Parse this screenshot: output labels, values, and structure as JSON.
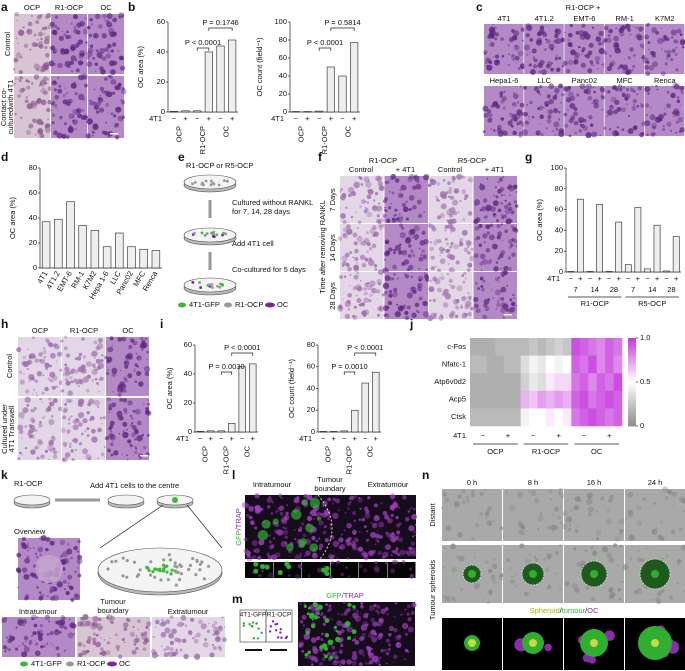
{
  "panels": {
    "a": {
      "letter": "a",
      "columns": [
        "OCP",
        "R1-OCP",
        "OC"
      ],
      "rows": [
        [
          "Control"
        ],
        [
          "Contact co-",
          "culturedwith 4T1"
        ]
      ]
    },
    "b": {
      "letter": "b"
    },
    "c": {
      "letter": "c",
      "title": "R1-OCP +",
      "cells": [
        "4T1",
        "4T1.2",
        "EMT-6",
        "RM-1",
        "K7M2",
        "Hepa1-6",
        "LLC",
        "Panc02",
        "MFC",
        "Renca"
      ]
    },
    "d": {
      "letter": "d"
    },
    "e": {
      "letter": "e",
      "title": "R1-OCP or R5-OCP",
      "steps": [
        [
          "Cultured without RANKL",
          "for 7, 14, 28 days"
        ],
        [
          "Add 4T1 cell"
        ],
        [
          "Co-cultured for 5 days"
        ]
      ],
      "legend": [
        "4T1-GFP",
        "R1-OCP",
        "OC"
      ]
    },
    "f": {
      "letter": "f",
      "groups": [
        "R1-OCP",
        "R5-OCP"
      ],
      "columns": [
        "Control",
        "+ 4T1",
        "Control",
        "+ 4T1"
      ],
      "side": "Time after removing RANKL",
      "rows": [
        "7 Days",
        "14 Days",
        "28 Days"
      ]
    },
    "g": {
      "letter": "g"
    },
    "h": {
      "letter": "h",
      "columns": [
        "OCP",
        "R1-OCP",
        "OC"
      ],
      "rows": [
        [
          "Control"
        ],
        [
          "Cultured under",
          "4T1 Transwell"
        ]
      ]
    },
    "i": {
      "letter": "i"
    },
    "j": {
      "letter": "j"
    },
    "k": {
      "letter": "k",
      "title": "R1-OCP",
      "step": "Add 4T1 cells to the centre",
      "overview": "Overview",
      "regions": [
        [
          "Intratumour"
        ],
        [
          "Tumour",
          "boundary"
        ],
        [
          "Extratumour"
        ]
      ],
      "legend": [
        "4T1-GFP",
        "R1-OCP",
        "OC"
      ]
    },
    "l": {
      "letter": "l",
      "regions": [
        [
          "Intratumour"
        ],
        [
          "Tumour",
          "boundary"
        ],
        [
          "Extratumour"
        ]
      ],
      "stain": [
        "GFP",
        "/TRAP"
      ]
    },
    "m": {
      "letter": "m",
      "inset": [
        "4T1-GFP",
        "R1-OCP"
      ],
      "stain": [
        "GFP",
        "/TRAP"
      ]
    },
    "n": {
      "letter": "n",
      "times": [
        "0 h",
        "8 h",
        "16 h",
        "24 h"
      ],
      "rows": [
        "Distant",
        "Tumour spheroids"
      ],
      "legend": [
        "Spheroid",
        "/",
        "tumour",
        "/",
        "OC"
      ]
    }
  },
  "chart_data": [
    {
      "type": "bar",
      "ylabel": "OC area (%)",
      "categories": [
        "−",
        "+",
        "−",
        "+",
        "−",
        "+"
      ],
      "groups": [
        "OCP",
        "R1-OCP",
        "OC"
      ],
      "row_label": "4T1",
      "values": [
        0.5,
        0.8,
        0.8,
        40,
        44,
        48
      ],
      "color": "#eeeeee",
      "ylim": [
        0,
        60
      ],
      "yticks": [
        0,
        20,
        40,
        60
      ],
      "annotations": [
        "P < 0.0001",
        "P = 0.1746"
      ]
    },
    {
      "type": "bar",
      "ylabel": "OC count (field⁻¹)",
      "categories": [
        "−",
        "+",
        "−",
        "+",
        "−",
        "+"
      ],
      "groups": [
        "OCP",
        "R1-OCP",
        "OC"
      ],
      "row_label": "4T1",
      "values": [
        0.5,
        0.5,
        1,
        50,
        40,
        77
      ],
      "color": "#eeeeee",
      "ylim": [
        0,
        100
      ],
      "yticks": [
        0,
        20,
        40,
        60,
        80,
        100
      ],
      "annotations": [
        "P < 0.0001",
        "P = 0.5814"
      ]
    },
    {
      "type": "bar",
      "ylabel": "OC area (%)",
      "categories": [
        "4T1",
        "4T1.2",
        "EMT-6",
        "RM-1",
        "K7M2",
        "Hepa 1-6",
        "LLC",
        "Panc02",
        "MFC",
        "Renca"
      ],
      "values": [
        37,
        39,
        53,
        34,
        30,
        17,
        28,
        17,
        15,
        14
      ],
      "color": "#eeeeee",
      "ylim": [
        0,
        80
      ],
      "yticks": [
        0,
        20,
        40,
        60,
        80
      ]
    },
    {
      "type": "bar",
      "ylabel": "OC area (%)",
      "categories": [
        "−",
        "+",
        "−",
        "+",
        "−",
        "+",
        "−",
        "+",
        "−",
        "+",
        "−",
        "+"
      ],
      "subgroups": [
        "7",
        "14",
        "28",
        "7",
        "14",
        "28"
      ],
      "groups": [
        "R1-OCP",
        "R5-OCP"
      ],
      "row_label": "4T1",
      "values": [
        0.5,
        70,
        0.5,
        65,
        0.5,
        48,
        7,
        62,
        3,
        45,
        1,
        34
      ],
      "color": "#eeeeee",
      "ylim": [
        0,
        100
      ],
      "yticks": [
        0,
        20,
        40,
        60,
        80,
        100
      ]
    },
    {
      "type": "bar",
      "ylabel": "OC area (%)",
      "categories": [
        "−",
        "+",
        "−",
        "+",
        "−",
        "+"
      ],
      "groups": [
        "OCP",
        "R1-OCP",
        "OC"
      ],
      "row_label": "4T1",
      "values": [
        0.5,
        0.8,
        0.8,
        6,
        45,
        47
      ],
      "color": "#eeeeee",
      "ylim": [
        0,
        60
      ],
      "yticks": [
        0,
        20,
        40,
        60
      ],
      "annotations": [
        "P = 0.0030",
        "P < 0.0001"
      ]
    },
    {
      "type": "bar",
      "ylabel": "OC count (field⁻¹)",
      "categories": [
        "−",
        "+",
        "−",
        "+",
        "−",
        "+"
      ],
      "groups": [
        "OCP",
        "R1-OCP",
        "OC"
      ],
      "row_label": "4T1",
      "values": [
        0.5,
        0.5,
        1,
        20,
        45,
        55
      ],
      "color": "#eeeeee",
      "ylim": [
        0,
        80
      ],
      "yticks": [
        0,
        20,
        40,
        60,
        80
      ],
      "annotations": [
        "P = 0.0010",
        "P < 0.0001"
      ]
    },
    {
      "type": "heatmap",
      "rows": [
        "c-Fos",
        "Nfatc-1",
        "Atp6v0d2",
        "Acp5",
        "Ctsk"
      ],
      "col_labels": [
        "−",
        "+",
        "−",
        "+",
        "−",
        "+"
      ],
      "groups": [
        "OCP",
        "R1-OCP",
        "OC"
      ],
      "row_label": "4T1",
      "values": [
        [
          0.15,
          0.15,
          0.15,
          0.2,
          0.2,
          0.2,
          0.2,
          0.25,
          0.2,
          0.25,
          0.3,
          0.25,
          0.95,
          0.9,
          0.85,
          0.8,
          0.9,
          0.85
        ],
        [
          0.2,
          0.2,
          0.15,
          0.15,
          0.2,
          0.2,
          0.35,
          0.45,
          0.4,
          0.5,
          0.45,
          0.5,
          0.9,
          0.85,
          0.95,
          0.8,
          0.9,
          0.8
        ],
        [
          0.15,
          0.15,
          0.15,
          0.15,
          0.15,
          0.15,
          0.3,
          0.4,
          0.35,
          0.55,
          0.6,
          0.6,
          0.85,
          0.9,
          0.8,
          0.9,
          0.85,
          0.95
        ],
        [
          0.15,
          0.15,
          0.15,
          0.15,
          0.15,
          0.15,
          0.7,
          0.65,
          0.75,
          0.7,
          0.75,
          0.7,
          0.9,
          0.95,
          0.85,
          0.9,
          0.95,
          0.9
        ],
        [
          0.2,
          0.2,
          0.2,
          0.2,
          0.2,
          0.2,
          0.45,
          0.5,
          0.5,
          0.55,
          0.5,
          0.55,
          0.85,
          0.9,
          0.95,
          0.9,
          0.85,
          0.9
        ]
      ],
      "colorscale": [
        "#8c8c8c",
        "#ffffff",
        "#c53bdc"
      ],
      "zlim": [
        0,
        1
      ],
      "zticks": [
        0,
        0.5,
        {
          "value": 1,
          "label": "1.0"
        }
      ]
    }
  ]
}
